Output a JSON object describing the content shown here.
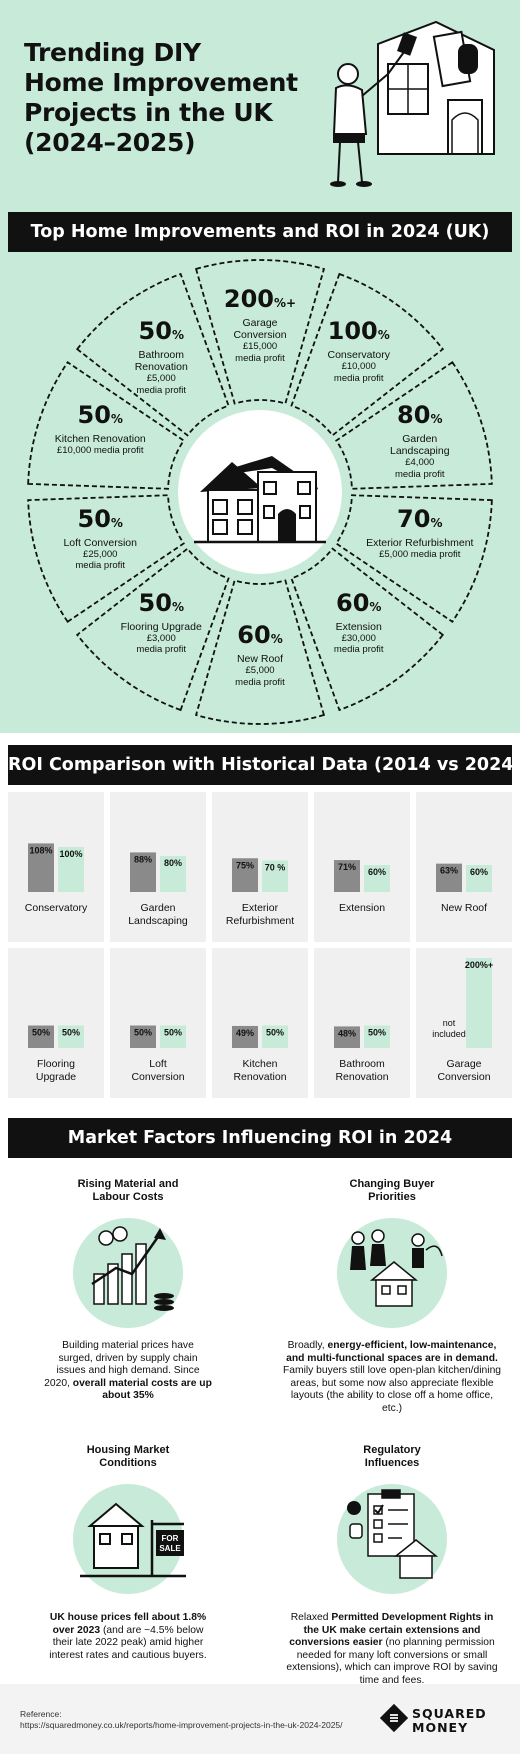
{
  "header": {
    "title": "Trending DIY\nHome Improvement\nProjects in the UK\n(2024–2025)"
  },
  "section1": {
    "title": "Top Home Improvements and ROI in 2024 (UK)",
    "items": [
      {
        "roi": "200",
        "suffix": "%+",
        "name": "Garage\nConversion",
        "profit": "£15,000\nmedia profit"
      },
      {
        "roi": "100",
        "suffix": "%",
        "name": "Conservatory",
        "profit": "£10,000\nmedia profit"
      },
      {
        "roi": "80",
        "suffix": "%",
        "name": "Garden\nLandscaping",
        "profit": "£4,000\nmedia profit"
      },
      {
        "roi": "70",
        "suffix": "%",
        "name": "Exterior Refurbishment",
        "profit": "£5,000 media profit"
      },
      {
        "roi": "60",
        "suffix": "%",
        "name": "Extension",
        "profit": "£30,000\nmedia profit"
      },
      {
        "roi": "60",
        "suffix": "%",
        "name": "New Roof",
        "profit": "£5,000\nmedia profit"
      },
      {
        "roi": "50",
        "suffix": "%",
        "name": "Flooring Upgrade",
        "profit": "£3,000\nmedia profit"
      },
      {
        "roi": "50",
        "suffix": "%",
        "name": "Loft Conversion",
        "profit": "£25,000\nmedia profit"
      },
      {
        "roi": "50",
        "suffix": "%",
        "name": "Kitchen Renovation",
        "profit": "£10,000 media profit"
      },
      {
        "roi": "50",
        "suffix": "%",
        "name": "Bathroom\nRenovation",
        "profit": "£5,000\nmedia profit"
      }
    ]
  },
  "section2": {
    "title": "ROI Comparison with Historical Data (2014 vs 2024)"
  },
  "chart_data": {
    "type": "bar",
    "title": "ROI Comparison with Historical Data (2014 vs 2024)",
    "categories": [
      "Conservatory",
      "Garden\nLandscaping",
      "Exterior\nRefurbishment",
      "Extension",
      "New Roof",
      "Flooring\nUpgrade",
      "Loft\nConversion",
      "Kitchen\nRenovation",
      "Bathroom\nRenovation",
      "Garage\nConversion"
    ],
    "series": [
      {
        "values": [
          108,
          88,
          75,
          71,
          63,
          50,
          50,
          49,
          48,
          null
        ],
        "labels": [
          "108%",
          "88%",
          "75%",
          "71%",
          "63%",
          "50%",
          "50%",
          "49%",
          "48%",
          "not\nincluded"
        ],
        "color": "#8a8a8a"
      },
      {
        "values": [
          100,
          80,
          70,
          60,
          60,
          50,
          50,
          50,
          50,
          200
        ],
        "labels": [
          "100%",
          "80%",
          "70 %",
          "60%",
          "60%",
          "50%",
          "50%",
          "50%",
          "50%",
          "200%+"
        ],
        "color": "#c7ead9"
      }
    ]
  },
  "section3": {
    "title": "Market Factors Influencing ROI in 2024",
    "factors": [
      {
        "title": "Rising Material and\nLabour Costs",
        "p1": "Building material prices have surged, driven by supply chain issues and high demand. Since 2020, ",
        "b1": "overall material costs are up about 35%",
        "p2": ""
      },
      {
        "title": "Changing Buyer\nPriorities",
        "p1": "Broadly, ",
        "b1": "energy-efficient, low-maintenance, and multi-functional spaces are in demand.",
        "p2": " Family buyers still love open-plan kitchen/dining areas, but some now also appreciate flexible layouts (the ability to close off a home office, etc.)"
      },
      {
        "title": "Housing Market\nConditions",
        "p1": "",
        "b1": "UK house prices fell about 1.8% over 2023",
        "p2": " (and are ~4.5% below their late 2022 peak) amid higher interest rates and cautious buyers."
      },
      {
        "title": "Regulatory\nInfluences",
        "p1": "Relaxed ",
        "b1": "Permitted Development Rights in the UK make certain extensions and conversions easier",
        "p2": " (no planning permission needed for many loft conversions or small extensions), which can improve ROI by saving time and fees."
      }
    ],
    "sign_text": "FOR\nSALE"
  },
  "footer": {
    "ref_label": "Reference:",
    "ref_url": "https://squaredmoney.co.uk/reports/home-improvement-projects-in-the-uk-2024-2025/",
    "brand": "SQUARED\nMONEY"
  },
  "colors": {
    "mint": "#c7ead9",
    "dark": "#111111",
    "gray_bar": "#8a8a8a"
  }
}
